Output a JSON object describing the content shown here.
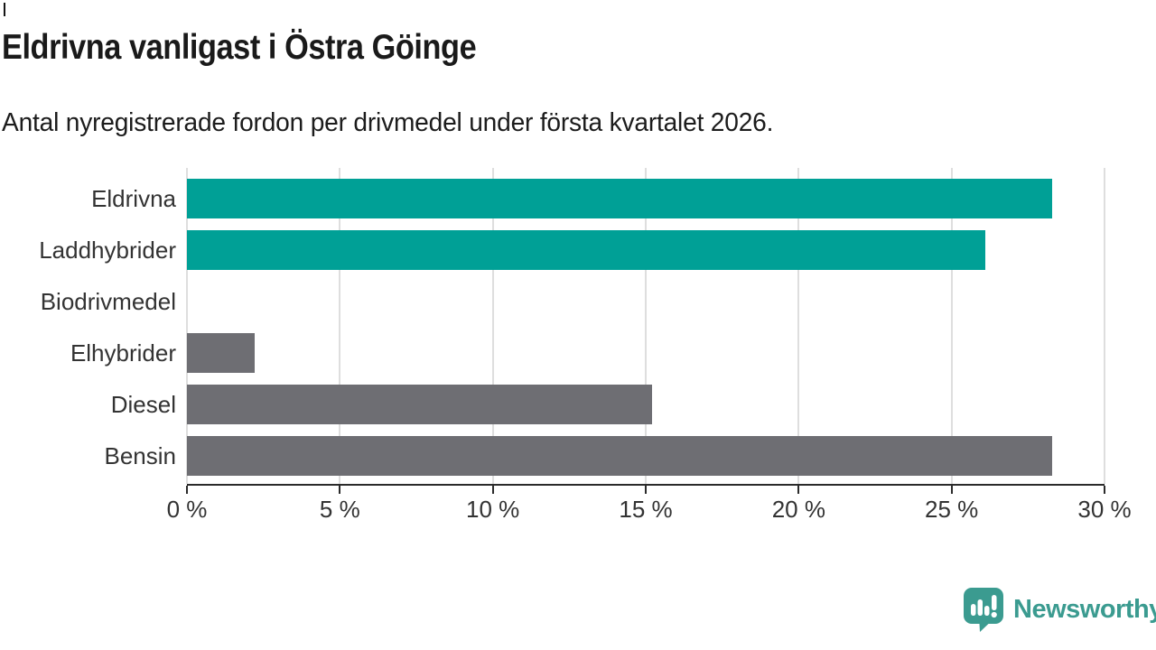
{
  "chart_data": {
    "type": "bar",
    "orientation": "horizontal",
    "title": "Eldrivna vanligast i Östra Göinge",
    "subtitle": "Antal nyregistrerade fordon per drivmedel under första kvartalet 2026.",
    "categories": [
      "Eldrivna",
      "Laddhybrider",
      "Biodrivmedel",
      "Elhybrider",
      "Diesel",
      "Bensin"
    ],
    "values": [
      28.3,
      26.1,
      0,
      2.2,
      15.2,
      28.3
    ],
    "value_unit": "%",
    "bar_colors": [
      "#00a096",
      "#00a096",
      "#6e6e73",
      "#6e6e73",
      "#6e6e73",
      "#6e6e73"
    ],
    "x_tick_values": [
      0,
      5,
      10,
      15,
      20,
      25,
      30
    ],
    "x_tick_labels": [
      "0 %",
      "5 %",
      "10 %",
      "15 %",
      "20 %",
      "25 %",
      "30 %"
    ],
    "xlim": [
      0,
      30
    ],
    "xlabel": "",
    "ylabel": "",
    "grid": "vertical-only",
    "legend": "none"
  },
  "colors": {
    "highlight_teal": "#00a096",
    "muted_gray": "#6e6e73",
    "gridline": "#dedede",
    "axis": "#2b2b2b",
    "title_text": "#1a1a1a",
    "label_text": "#333333",
    "brand_teal": "#3b9b90"
  },
  "footer": {
    "brand": "Newsworthy",
    "logo_icon": "newsworthy-speech-bubble-bar-chart-icon"
  }
}
